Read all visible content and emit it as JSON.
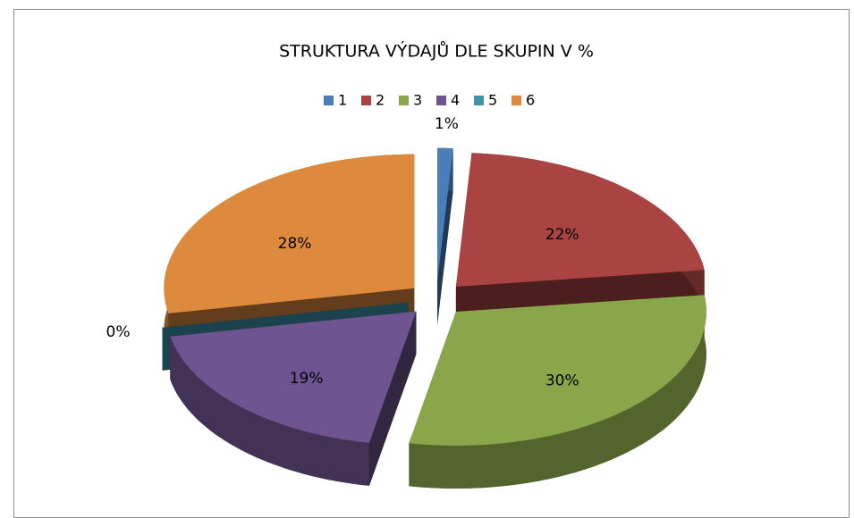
{
  "chart_data": {
    "type": "pie",
    "title": "STRUKTURA VÝDAJŮ DLE SKUPIN V %",
    "categories": [
      "1",
      "2",
      "3",
      "4",
      "5",
      "6"
    ],
    "values": [
      1,
      22,
      30,
      19,
      0,
      28
    ],
    "value_labels": [
      "1%",
      "22%",
      "30%",
      "19%",
      "0%",
      "28%"
    ],
    "colors": [
      "#4a7ebb",
      "#a94442",
      "#8aa64a",
      "#6e5490",
      "#3f95ab",
      "#de8a3e"
    ],
    "legend": "top",
    "exploded": true,
    "three_d": true
  }
}
